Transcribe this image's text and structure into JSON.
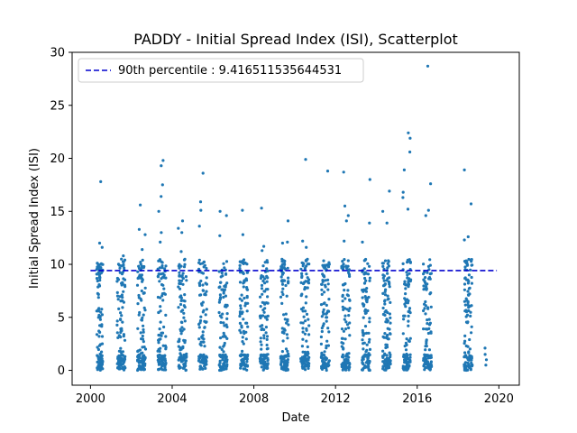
{
  "chart_data": {
    "type": "scatter",
    "title": "PADDY - Initial Spread Index (ISI), Scatterplot",
    "xlabel": "Date",
    "ylabel": "Initial Spread Index (ISI)",
    "xlim": [
      1999.1,
      2021.0
    ],
    "ylim": [
      -1.4,
      30
    ],
    "x_ticks": [
      2000,
      2004,
      2008,
      2012,
      2016,
      2020
    ],
    "y_ticks": [
      0,
      5,
      10,
      15,
      20,
      25,
      30
    ],
    "grid": false,
    "legend_position": "top-left",
    "reference_line": {
      "label": "90th percentile : 9.416511535644531",
      "value": 9.416511535644531,
      "x_range": [
        2000.0,
        2019.9
      ],
      "color": "#0000cd",
      "style": "dashed"
    },
    "series": [
      {
        "color": "#1f77b4",
        "seasons": [
          {
            "year": 2000,
            "start": 2000.3,
            "end": 2000.6,
            "max": 17.8,
            "outliers": [
              17.8,
              12.0,
              11.6
            ]
          },
          {
            "year": 2001,
            "start": 2001.3,
            "end": 2001.7,
            "max": 10.8,
            "outliers": [
              10.8,
              10.5
            ]
          },
          {
            "year": 2002,
            "start": 2002.3,
            "end": 2002.7,
            "max": 15.6,
            "outliers": [
              15.6,
              13.3,
              12.8,
              11.4
            ]
          },
          {
            "year": 2003,
            "start": 2003.3,
            "end": 2003.7,
            "max": 19.8,
            "outliers": [
              19.8,
              19.3,
              17.5,
              16.4,
              15.0,
              13.0,
              12.1
            ]
          },
          {
            "year": 2004,
            "start": 2004.3,
            "end": 2004.7,
            "max": 14.1,
            "outliers": [
              14.1,
              13.4,
              13.0,
              11.2
            ]
          },
          {
            "year": 2005,
            "start": 2005.3,
            "end": 2005.7,
            "max": 18.6,
            "outliers": [
              18.6,
              15.9,
              15.1,
              13.6
            ]
          },
          {
            "year": 2006,
            "start": 2006.3,
            "end": 2006.7,
            "max": 15.0,
            "outliers": [
              15.0,
              14.6,
              12.7
            ]
          },
          {
            "year": 2007,
            "start": 2007.3,
            "end": 2007.7,
            "max": 15.1,
            "outliers": [
              15.1,
              12.8
            ]
          },
          {
            "year": 2008,
            "start": 2008.3,
            "end": 2008.7,
            "max": 15.3,
            "outliers": [
              15.3,
              11.7,
              11.3
            ]
          },
          {
            "year": 2009,
            "start": 2009.3,
            "end": 2009.7,
            "max": 14.1,
            "outliers": [
              14.1,
              12.1,
              12.0
            ]
          },
          {
            "year": 2010,
            "start": 2010.3,
            "end": 2010.7,
            "max": 19.9,
            "outliers": [
              19.9,
              12.2,
              11.6
            ]
          },
          {
            "year": 2011,
            "start": 2011.3,
            "end": 2011.7,
            "max": 18.8,
            "outliers": [
              18.8
            ]
          },
          {
            "year": 2012,
            "start": 2012.3,
            "end": 2012.7,
            "max": 18.7,
            "outliers": [
              18.7,
              15.5,
              14.6,
              14.1,
              12.2
            ]
          },
          {
            "year": 2013,
            "start": 2013.3,
            "end": 2013.7,
            "max": 18.0,
            "outliers": [
              18.0,
              13.9,
              12.1
            ]
          },
          {
            "year": 2014,
            "start": 2014.3,
            "end": 2014.7,
            "max": 16.9,
            "outliers": [
              16.9,
              15.0,
              13.9
            ]
          },
          {
            "year": 2015,
            "start": 2015.3,
            "end": 2015.7,
            "max": 22.4,
            "outliers": [
              22.4,
              21.9,
              20.6,
              18.9,
              16.8,
              16.3,
              15.2
            ]
          },
          {
            "year": 2016,
            "start": 2016.3,
            "end": 2016.7,
            "max": 28.7,
            "outliers": [
              28.7,
              17.6,
              15.1,
              14.6
            ]
          },
          {
            "year": 2018,
            "start": 2018.3,
            "end": 2018.7,
            "max": 18.9,
            "outliers": [
              18.9,
              15.7,
              12.6,
              12.3
            ]
          },
          {
            "year": 2019,
            "start": 2019.3,
            "end": 2019.4,
            "max": 2.1,
            "outliers": [
              2.1,
              1.5,
              1.0,
              0.5
            ]
          }
        ]
      }
    ]
  }
}
